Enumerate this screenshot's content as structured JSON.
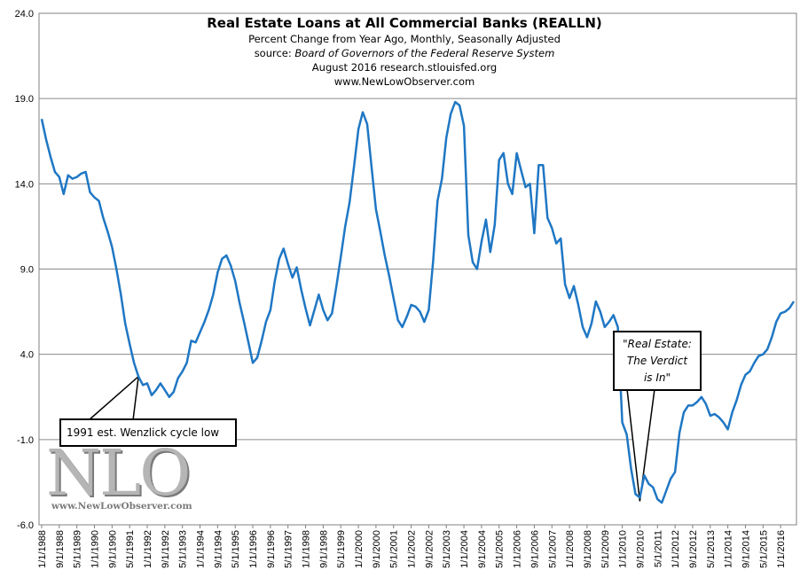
{
  "chart_data": {
    "type": "line",
    "title": "Real Estate Loans at All Commercial Banks (REALLN)",
    "subtitle_lines": [
      "Percent Change from Year Ago, Monthly, Seasonally Adjusted",
      "source: Board of Governors of the Federal Reserve System",
      "August 2016 research.stlouisfed.org",
      "www.NewLowObserver.com"
    ],
    "xlabel": "",
    "ylabel": "",
    "ylim": [
      -6.0,
      24.0
    ],
    "yticks": [
      "24.0",
      "19.0",
      "14.0",
      "9.0",
      "4.0",
      "-1.0",
      "-6.0"
    ],
    "xlim": [
      "1988-01",
      "2016-07"
    ],
    "xticks": [
      "1/1/1988",
      "9/1/1988",
      "5/1/1989",
      "1/1/1990",
      "9/1/1990",
      "5/1/1991",
      "1/1/1992",
      "9/1/1992",
      "5/1/1993",
      "1/1/1994",
      "9/1/1994",
      "5/1/1995",
      "1/1/1996",
      "9/1/1996",
      "5/1/1997",
      "1/1/1998",
      "9/1/1998",
      "5/1/1999",
      "1/1/2000",
      "9/1/2000",
      "5/1/2001",
      "1/1/2002",
      "9/1/2002",
      "5/1/2003",
      "1/1/2004",
      "9/1/2004",
      "5/1/2005",
      "1/1/2006",
      "9/1/2006",
      "5/1/2007",
      "1/1/2008",
      "9/1/2008",
      "5/1/2009",
      "1/1/2010",
      "9/1/2010",
      "5/1/2011",
      "1/1/2012",
      "9/1/2012",
      "5/1/2013",
      "1/1/2014",
      "9/1/2014",
      "5/1/2015",
      "1/1/2016"
    ],
    "grid": "horizontal",
    "line_color": "#1f77c4",
    "series": [
      {
        "points": [
          [
            "1988-01",
            17.8
          ],
          [
            "1988-03",
            16.6
          ],
          [
            "1988-05",
            15.6
          ],
          [
            "1988-07",
            14.7
          ],
          [
            "1988-09",
            14.4
          ],
          [
            "1988-11",
            13.4
          ],
          [
            "1989-01",
            14.5
          ],
          [
            "1989-03",
            14.3
          ],
          [
            "1989-05",
            14.4
          ],
          [
            "1989-07",
            14.6
          ],
          [
            "1989-09",
            14.7
          ],
          [
            "1989-11",
            13.5
          ],
          [
            "1990-01",
            13.2
          ],
          [
            "1990-03",
            13.0
          ],
          [
            "1990-05",
            12.0
          ],
          [
            "1990-07",
            11.2
          ],
          [
            "1990-09",
            10.3
          ],
          [
            "1990-11",
            9.0
          ],
          [
            "1991-01",
            7.5
          ],
          [
            "1991-03",
            5.8
          ],
          [
            "1991-05",
            4.6
          ],
          [
            "1991-07",
            3.5
          ],
          [
            "1991-09",
            2.7
          ],
          [
            "1991-11",
            2.2
          ],
          [
            "1992-01",
            2.3
          ],
          [
            "1992-03",
            1.6
          ],
          [
            "1992-05",
            1.9
          ],
          [
            "1992-07",
            2.3
          ],
          [
            "1992-09",
            1.9
          ],
          [
            "1992-11",
            1.5
          ],
          [
            "1993-01",
            1.8
          ],
          [
            "1993-03",
            2.6
          ],
          [
            "1993-05",
            3.0
          ],
          [
            "1993-07",
            3.5
          ],
          [
            "1993-09",
            4.8
          ],
          [
            "1993-11",
            4.7
          ],
          [
            "1994-01",
            5.3
          ],
          [
            "1994-03",
            5.9
          ],
          [
            "1994-05",
            6.6
          ],
          [
            "1994-07",
            7.5
          ],
          [
            "1994-09",
            8.8
          ],
          [
            "1994-11",
            9.6
          ],
          [
            "1995-01",
            9.8
          ],
          [
            "1995-03",
            9.2
          ],
          [
            "1995-05",
            8.3
          ],
          [
            "1995-07",
            7.0
          ],
          [
            "1995-09",
            5.9
          ],
          [
            "1995-11",
            4.7
          ],
          [
            "1996-01",
            3.5
          ],
          [
            "1996-03",
            3.8
          ],
          [
            "1996-05",
            4.8
          ],
          [
            "1996-07",
            5.9
          ],
          [
            "1996-09",
            6.6
          ],
          [
            "1996-11",
            8.3
          ],
          [
            "1997-01",
            9.6
          ],
          [
            "1997-03",
            10.2
          ],
          [
            "1997-05",
            9.3
          ],
          [
            "1997-07",
            8.5
          ],
          [
            "1997-09",
            9.1
          ],
          [
            "1997-11",
            7.8
          ],
          [
            "1998-01",
            6.7
          ],
          [
            "1998-03",
            5.7
          ],
          [
            "1998-05",
            6.6
          ],
          [
            "1998-07",
            7.5
          ],
          [
            "1998-09",
            6.6
          ],
          [
            "1998-11",
            6.0
          ],
          [
            "1999-01",
            6.4
          ],
          [
            "1999-03",
            8.0
          ],
          [
            "1999-05",
            9.7
          ],
          [
            "1999-07",
            11.5
          ],
          [
            "1999-09",
            12.9
          ],
          [
            "1999-11",
            15.0
          ],
          [
            "2000-01",
            17.2
          ],
          [
            "2000-03",
            18.2
          ],
          [
            "2000-05",
            17.5
          ],
          [
            "2000-07",
            15.0
          ],
          [
            "2000-09",
            12.5
          ],
          [
            "2000-11",
            11.2
          ],
          [
            "2001-01",
            9.8
          ],
          [
            "2001-03",
            8.6
          ],
          [
            "2001-05",
            7.3
          ],
          [
            "2001-07",
            6.0
          ],
          [
            "2001-09",
            5.6
          ],
          [
            "2001-11",
            6.2
          ],
          [
            "2002-01",
            6.9
          ],
          [
            "2002-03",
            6.8
          ],
          [
            "2002-05",
            6.5
          ],
          [
            "2002-07",
            5.9
          ],
          [
            "2002-09",
            6.6
          ],
          [
            "2002-11",
            9.5
          ],
          [
            "2003-01",
            13.0
          ],
          [
            "2003-03",
            14.3
          ],
          [
            "2003-05",
            16.7
          ],
          [
            "2003-07",
            18.1
          ],
          [
            "2003-09",
            18.8
          ],
          [
            "2003-11",
            18.6
          ],
          [
            "2004-01",
            17.4
          ],
          [
            "2004-03",
            11.0
          ],
          [
            "2004-05",
            9.4
          ],
          [
            "2004-07",
            9.0
          ],
          [
            "2004-09",
            10.6
          ],
          [
            "2004-11",
            11.9
          ],
          [
            "2005-01",
            10.0
          ],
          [
            "2005-03",
            11.6
          ],
          [
            "2005-05",
            15.4
          ],
          [
            "2005-07",
            15.8
          ],
          [
            "2005-09",
            14.0
          ],
          [
            "2005-11",
            13.4
          ],
          [
            "2006-01",
            15.8
          ],
          [
            "2006-03",
            14.8
          ],
          [
            "2006-05",
            13.8
          ],
          [
            "2006-07",
            14.0
          ],
          [
            "2006-09",
            11.1
          ],
          [
            "2006-11",
            15.1
          ],
          [
            "2007-01",
            15.1
          ],
          [
            "2007-03",
            12.0
          ],
          [
            "2007-05",
            11.4
          ],
          [
            "2007-07",
            10.5
          ],
          [
            "2007-09",
            10.8
          ],
          [
            "2007-11",
            8.1
          ],
          [
            "2008-01",
            7.3
          ],
          [
            "2008-03",
            8.0
          ],
          [
            "2008-05",
            6.9
          ],
          [
            "2008-07",
            5.6
          ],
          [
            "2008-09",
            5.0
          ],
          [
            "2008-11",
            5.8
          ],
          [
            "2009-01",
            7.1
          ],
          [
            "2009-03",
            6.5
          ],
          [
            "2009-05",
            5.6
          ],
          [
            "2009-07",
            5.9
          ],
          [
            "2009-09",
            6.3
          ],
          [
            "2009-11",
            5.6
          ],
          [
            "2010-01",
            0.0
          ],
          [
            "2010-03",
            -0.7
          ],
          [
            "2010-05",
            -2.7
          ],
          [
            "2010-07",
            -4.2
          ],
          [
            "2010-09",
            -4.4
          ],
          [
            "2010-11",
            -3.1
          ],
          [
            "2011-01",
            -3.6
          ],
          [
            "2011-03",
            -3.8
          ],
          [
            "2011-05",
            -4.5
          ],
          [
            "2011-07",
            -4.7
          ],
          [
            "2011-09",
            -4.0
          ],
          [
            "2011-11",
            -3.3
          ],
          [
            "2012-01",
            -2.9
          ],
          [
            "2012-03",
            -0.6
          ],
          [
            "2012-05",
            0.6
          ],
          [
            "2012-07",
            1.0
          ],
          [
            "2012-09",
            1.0
          ],
          [
            "2012-11",
            1.2
          ],
          [
            "2013-01",
            1.5
          ],
          [
            "2013-03",
            1.1
          ],
          [
            "2013-05",
            0.4
          ],
          [
            "2013-07",
            0.5
          ],
          [
            "2013-09",
            0.3
          ],
          [
            "2013-11",
            0.0
          ],
          [
            "2014-01",
            -0.4
          ],
          [
            "2014-03",
            0.6
          ],
          [
            "2014-05",
            1.3
          ],
          [
            "2014-07",
            2.2
          ],
          [
            "2014-09",
            2.8
          ],
          [
            "2014-11",
            3.0
          ],
          [
            "2015-01",
            3.5
          ],
          [
            "2015-03",
            3.9
          ],
          [
            "2015-05",
            4.0
          ],
          [
            "2015-07",
            4.3
          ],
          [
            "2015-09",
            5.0
          ],
          [
            "2015-11",
            5.9
          ],
          [
            "2016-01",
            6.4
          ],
          [
            "2016-03",
            6.5
          ],
          [
            "2016-05",
            6.7
          ],
          [
            "2016-07",
            7.1
          ]
        ]
      }
    ],
    "annotations": [
      {
        "text": "1991 est. Wenzlick cycle low",
        "x": "1991-09",
        "y": 2.7
      },
      {
        "text_lines": [
          "\"Real Estate:",
          "The Verdict",
          "is In\""
        ],
        "x": "2010-09",
        "y": -4.2
      }
    ]
  },
  "logo": {
    "text": "NLO",
    "url": "www.NewLowObserver.com"
  }
}
